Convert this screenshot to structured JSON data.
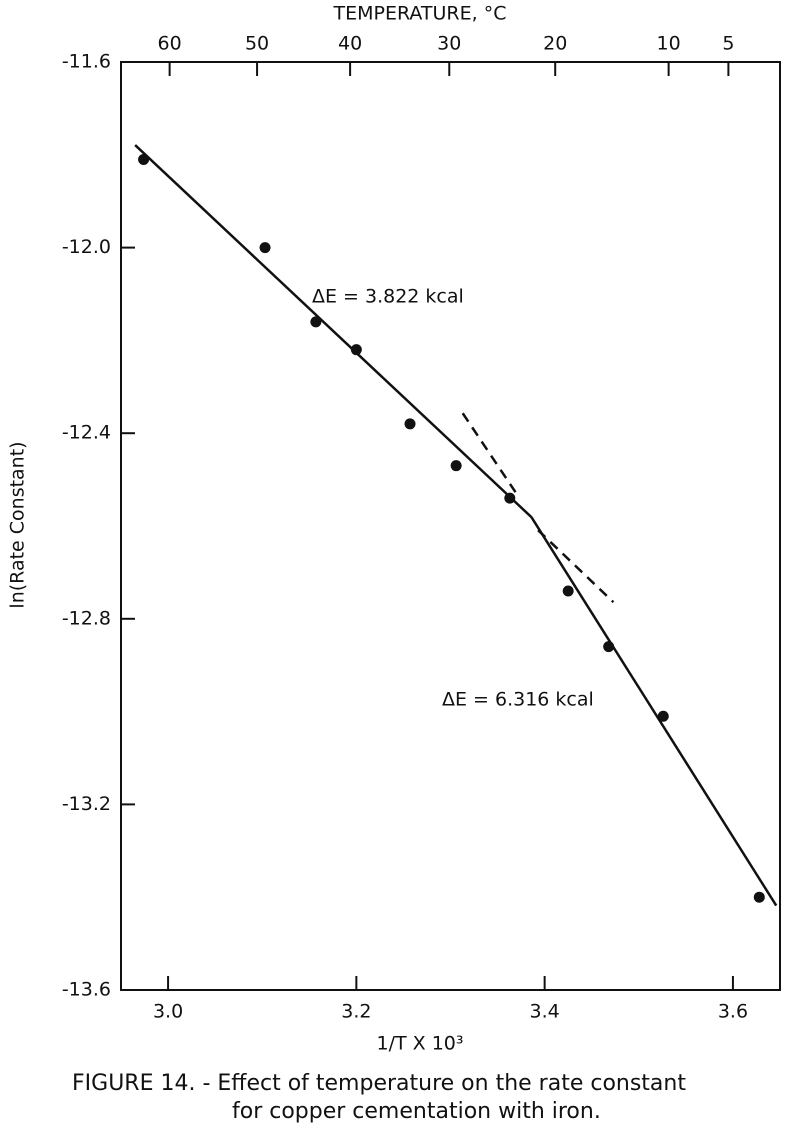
{
  "chart_data": {
    "type": "scatter",
    "x2label": "TEMPERATURE, °C",
    "ylabel": "ln(Rate Constant)",
    "xlabel": "1/T X 10³",
    "caption": [
      "FIGURE 14. - Effect of temperature on the rate constant",
      "for copper cementation with iron."
    ],
    "annotations": [
      "ΔE = 3.822 kcal",
      "ΔE = 6.316 kcal"
    ],
    "color": "#111111",
    "x": [
      2.974,
      3.103,
      3.157,
      3.2,
      3.257,
      3.306,
      3.363,
      3.425,
      3.468,
      3.526,
      3.628
    ],
    "values": [
      -11.81,
      -12.0,
      -12.16,
      -12.22,
      -12.38,
      -12.47,
      -12.54,
      -12.74,
      -12.86,
      -13.01,
      -13.4
    ],
    "fit_lines": [
      {
        "x": [
          2.965,
          3.386
        ],
        "values": [
          -11.779,
          -12.581
        ]
      },
      {
        "x": [
          3.386,
          3.646
        ],
        "values": [
          -12.581,
          -13.418
        ]
      }
    ],
    "dashed_lines": [
      {
        "x": [
          3.313,
          3.37
        ],
        "values": [
          -12.357,
          -12.53
        ]
      },
      {
        "x": [
          3.393,
          3.473
        ],
        "values": [
          -12.609,
          -12.764
        ]
      }
    ],
    "xlim": [
      2.95,
      3.65
    ],
    "ylim": [
      -13.6,
      -11.6
    ],
    "xticks": [
      {
        "value": 3.0,
        "label": "3.0"
      },
      {
        "value": 3.2,
        "label": "3.2"
      },
      {
        "value": 3.4,
        "label": "3.4"
      },
      {
        "value": 3.6,
        "label": "3.6"
      }
    ],
    "yticks": [
      {
        "value": -13.6,
        "label": "-13.6"
      },
      {
        "value": -13.2,
        "label": "-13.2"
      },
      {
        "value": -12.8,
        "label": "-12.8"
      },
      {
        "value": -12.4,
        "label": "-12.4"
      },
      {
        "value": -12.0,
        "label": "-12.0"
      },
      {
        "value": -11.6,
        "label": "-11.6"
      }
    ],
    "x2ticks": [
      60,
      50,
      40,
      30,
      20,
      10,
      5
    ]
  }
}
